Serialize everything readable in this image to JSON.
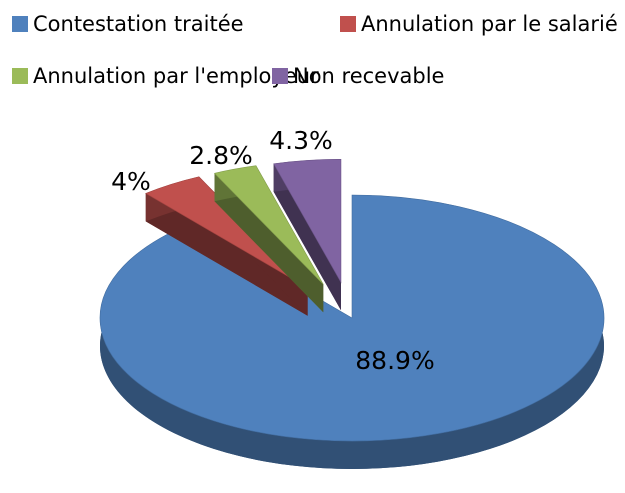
{
  "chart_data": {
    "type": "pie",
    "categories": [
      "Contestation traitée",
      "Annulation par le salarié",
      "Annulation par l'employeur",
      "Non recevable"
    ],
    "values": [
      88.9,
      4,
      2.8,
      4.3
    ],
    "value_labels": [
      "88.9%",
      "4%",
      "2.8%",
      "4.3%"
    ],
    "colors": [
      "#4f81bd",
      "#c0504d",
      "#9bbb59",
      "#8064a2"
    ],
    "legend": "top"
  }
}
